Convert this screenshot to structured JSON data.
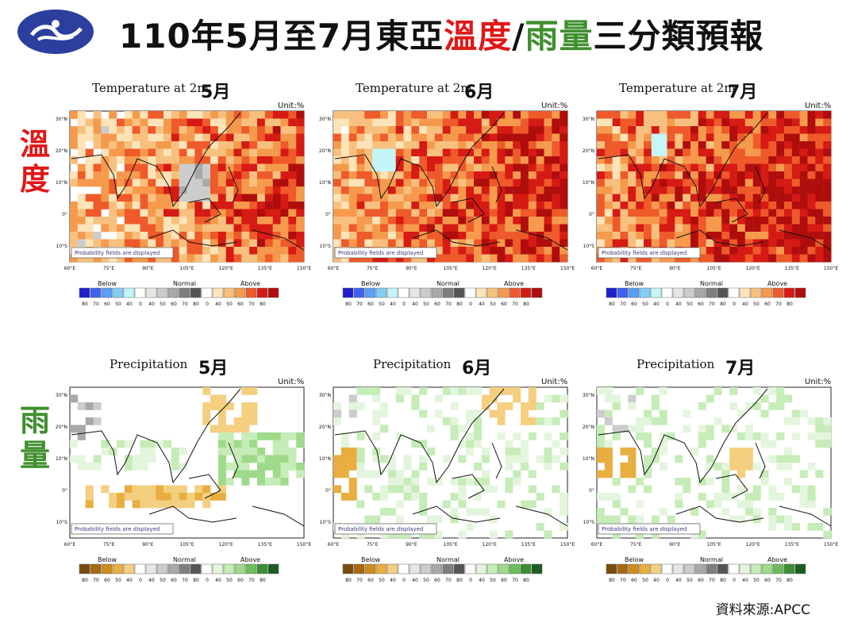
{
  "header": {
    "title_part1": "110年5月至7月東亞",
    "title_temp": "溫度",
    "title_sep": "/",
    "title_rain": "雨量",
    "title_part2": "三分類預報"
  },
  "side_labels": {
    "temperature": "溫度",
    "precipitation": "雨量"
  },
  "colors": {
    "title_red": "#e01818",
    "title_green": "#3f8f2f",
    "temp_below": [
      "#1e1ecf",
      "#3b62f0",
      "#5b9ef5",
      "#83cdf5",
      "#c4f5f8"
    ],
    "normal": [
      "#ffffff",
      "#e6e6e6",
      "#cccccc",
      "#a8a8a8",
      "#7e7e7e",
      "#555555"
    ],
    "temp_above": [
      "#ffffff",
      "#fde3b8",
      "#f8c07e",
      "#f59a4c",
      "#ee5a2a",
      "#d61a14",
      "#b00d0d"
    ],
    "prec_below": [
      "#7a4a0a",
      "#a86812",
      "#cf8c1a",
      "#e8ae40",
      "#f4cf80"
    ],
    "prec_above": [
      "#ffffff",
      "#e4f5dd",
      "#c6ecb8",
      "#9fda8a",
      "#6cbe5a",
      "#3a8f34",
      "#1b5e1f"
    ]
  },
  "panels": [
    {
      "row": "temp",
      "title": "Temperature at 2m",
      "month": "5月",
      "unit": "Unit:%",
      "box": "Probability fields are displayed",
      "pattern": "t5"
    },
    {
      "row": "temp",
      "title": "Temperature at 2m",
      "month": "6月",
      "unit": "Unit:%",
      "box": "Probability fields are displayed",
      "pattern": "t6"
    },
    {
      "row": "temp",
      "title": "Temperature at 2m",
      "month": "7月",
      "unit": "Unit:%",
      "box": "Probability fields are displayed",
      "pattern": "t7"
    },
    {
      "row": "prec",
      "title": "Precipitation",
      "month": "5月",
      "unit": "Unit:%",
      "box": "Probability fields are displayed",
      "pattern": "p5"
    },
    {
      "row": "prec",
      "title": "Precipitation",
      "month": "6月",
      "unit": "Unit:%",
      "box": "Probability fields are displayed",
      "pattern": "p6"
    },
    {
      "row": "prec",
      "title": "Precipitation",
      "month": "7月",
      "unit": "Unit:%",
      "box": "Probability fields are displayed",
      "pattern": "p7"
    }
  ],
  "lat_labels": [
    "30°N",
    "20°N",
    "10°N",
    "0°",
    "10°S"
  ],
  "lon_labels": [
    "60°E",
    "75°E",
    "90°E",
    "105°E",
    "120°E",
    "135°E",
    "150°E"
  ],
  "legend": {
    "below_label": "Below",
    "normal_label": "Normal",
    "above_label": "Above",
    "below_ticks": [
      "80",
      "70",
      "60",
      "50",
      "40"
    ],
    "normal_ticks": [
      "0",
      "40",
      "50",
      "60",
      "70",
      "80"
    ],
    "above_ticks": [
      "0",
      "40",
      "50",
      "60",
      "70",
      "80"
    ]
  },
  "source_note": "資料來源:APCC"
}
